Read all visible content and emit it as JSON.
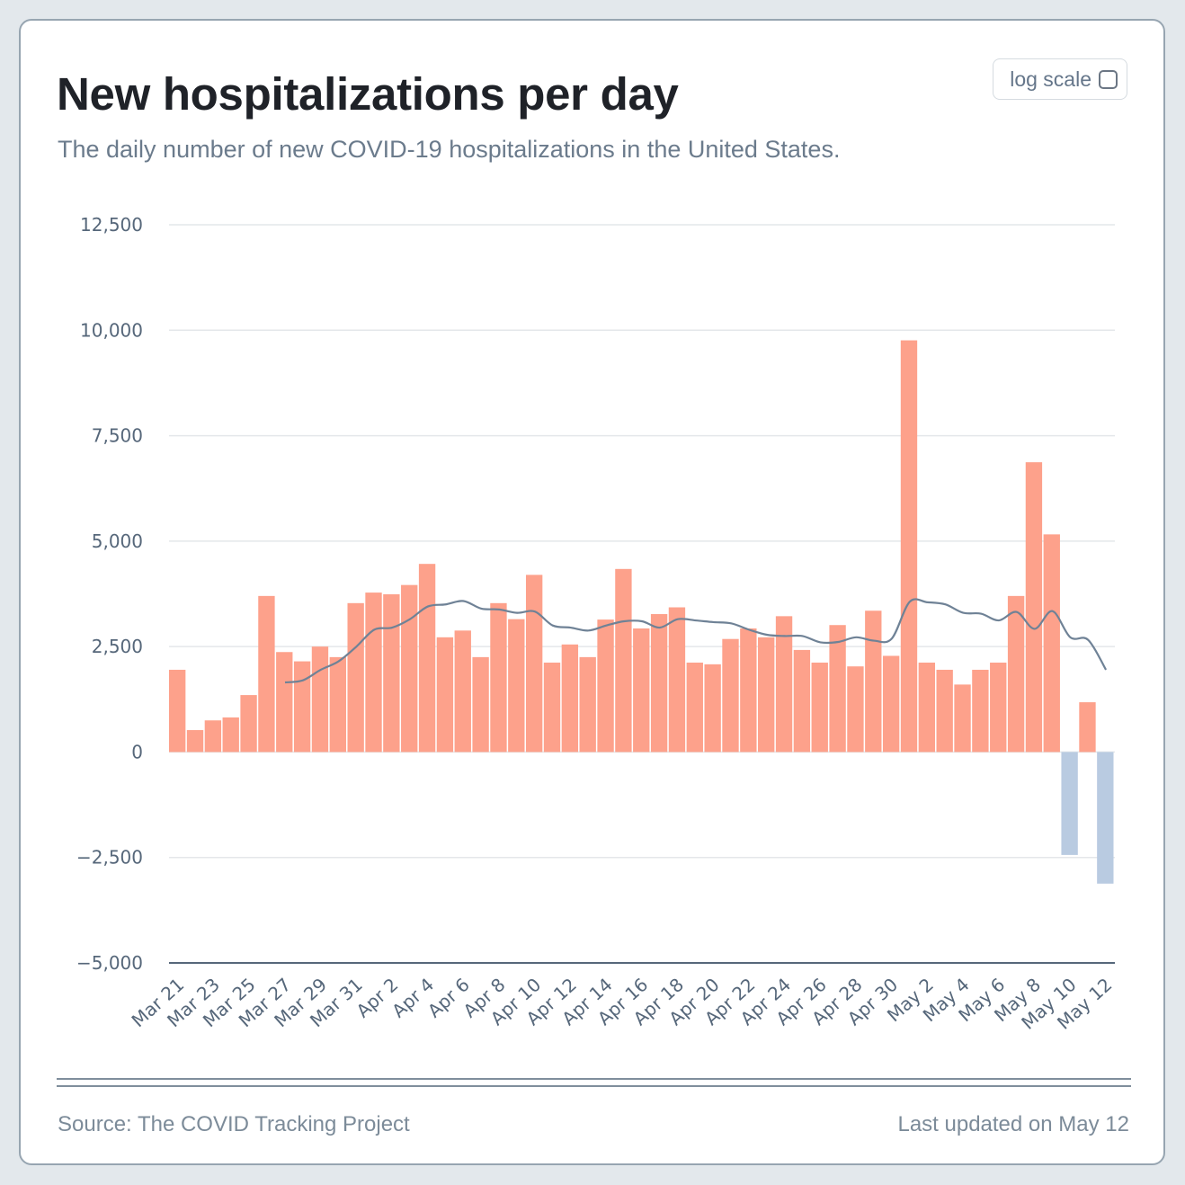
{
  "title": "New hospitalizations per day",
  "subtitle": "The daily number of new COVID-19 hospitalizations in the United States.",
  "log_scale_label": "log scale",
  "log_scale_checked": false,
  "footer": {
    "source": "Source: The COVID Tracking Project",
    "updated": "Last updated on May 12"
  },
  "colors": {
    "positive_bar": "#fda18b",
    "negative_bar": "#b9cbe1",
    "average_line": "#6f8296",
    "grid": "#e4e7ea",
    "axis": "#56677a"
  },
  "chart_data": {
    "type": "bar",
    "title": "New hospitalizations per day",
    "subtitle": "The daily number of new COVID-19 hospitalizations in the United States.",
    "xlabel": "",
    "ylabel": "",
    "ylim": [
      -5000,
      12500
    ],
    "y_ticks": [
      "12,500",
      "10,000",
      "7,500",
      "5,000",
      "2,500",
      "0",
      "−2,500",
      "−5,000"
    ],
    "y_tick_values": [
      12500,
      10000,
      7500,
      5000,
      2500,
      0,
      -2500,
      -5000
    ],
    "x_tick_labels": [
      "Mar 21",
      "Mar 23",
      "Mar 25",
      "Mar 27",
      "Mar 29",
      "Mar 31",
      "Apr 2",
      "Apr 4",
      "Apr 6",
      "Apr 8",
      "Apr 10",
      "Apr 12",
      "Apr 14",
      "Apr 16",
      "Apr 18",
      "Apr 20",
      "Apr 22",
      "Apr 24",
      "Apr 26",
      "Apr 28",
      "Apr 30",
      "May 2",
      "May 4",
      "May 6",
      "May 8",
      "May 10",
      "May 12"
    ],
    "grid": true,
    "legend": "none",
    "categories": [
      "Mar 21",
      "Mar 22",
      "Mar 23",
      "Mar 24",
      "Mar 25",
      "Mar 26",
      "Mar 27",
      "Mar 28",
      "Mar 29",
      "Mar 30",
      "Mar 31",
      "Apr 1",
      "Apr 2",
      "Apr 3",
      "Apr 4",
      "Apr 5",
      "Apr 6",
      "Apr 7",
      "Apr 8",
      "Apr 9",
      "Apr 10",
      "Apr 11",
      "Apr 12",
      "Apr 13",
      "Apr 14",
      "Apr 15",
      "Apr 16",
      "Apr 17",
      "Apr 18",
      "Apr 19",
      "Apr 20",
      "Apr 21",
      "Apr 22",
      "Apr 23",
      "Apr 24",
      "Apr 25",
      "Apr 26",
      "Apr 27",
      "Apr 28",
      "Apr 29",
      "Apr 30",
      "May 1",
      "May 2",
      "May 3",
      "May 4",
      "May 5",
      "May 6",
      "May 7",
      "May 8",
      "May 9",
      "May 10",
      "May 11",
      "May 12"
    ],
    "series": [
      {
        "type": "bar",
        "values": [
          1950,
          520,
          750,
          820,
          1350,
          3700,
          2370,
          2150,
          2500,
          2250,
          3530,
          3780,
          3740,
          3960,
          4460,
          2720,
          2880,
          2250,
          3530,
          3150,
          4200,
          2120,
          2550,
          2250,
          3140,
          4340,
          2930,
          3270,
          3430,
          2120,
          2080,
          2680,
          2930,
          2720,
          3220,
          2420,
          2120,
          3010,
          2030,
          3350,
          2280,
          9760,
          2120,
          1950,
          1600,
          1950,
          2120,
          3700,
          6870,
          5160,
          -2440,
          1180,
          -3120
        ]
      },
      {
        "type": "line",
        "values": [
          null,
          null,
          null,
          null,
          null,
          null,
          1650,
          1700,
          1950,
          2150,
          2500,
          2900,
          2950,
          3150,
          3450,
          3500,
          3580,
          3400,
          3380,
          3300,
          3330,
          3000,
          2950,
          2880,
          3000,
          3100,
          3100,
          2950,
          3150,
          3120,
          3080,
          3050,
          2900,
          2780,
          2750,
          2750,
          2600,
          2610,
          2720,
          2640,
          2690,
          3560,
          3550,
          3500,
          3300,
          3280,
          3120,
          3320,
          2920,
          3340,
          2720,
          2660,
          1950
        ]
      }
    ]
  }
}
